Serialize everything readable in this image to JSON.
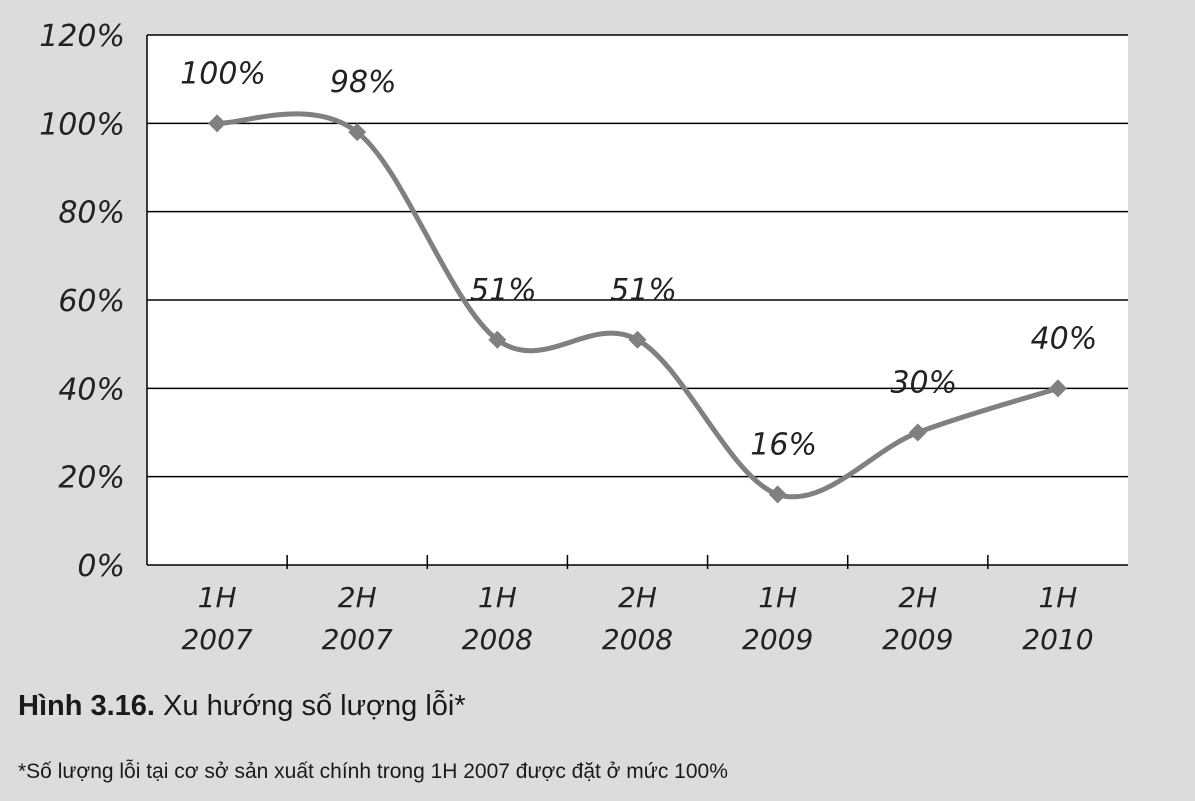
{
  "chart_data": {
    "type": "line",
    "categories": [
      [
        "1H",
        "2007"
      ],
      [
        "2H",
        "2007"
      ],
      [
        "1H",
        "2008"
      ],
      [
        "2H",
        "2008"
      ],
      [
        "1H",
        "2009"
      ],
      [
        "2H",
        "2009"
      ],
      [
        "1H",
        "2010"
      ]
    ],
    "values": [
      100,
      98,
      51,
      51,
      16,
      30,
      40
    ],
    "data_labels": [
      "100%",
      "98%",
      "51%",
      "51%",
      "16%",
      "30%",
      "40%"
    ],
    "y_ticks": [
      "0%",
      "20%",
      "40%",
      "60%",
      "80%",
      "100%",
      "120%"
    ],
    "ylim": [
      0,
      120
    ],
    "grid": true,
    "smooth": true,
    "marker": "diamond",
    "line_color": "#808080",
    "plot_background": "#ffffff",
    "grid_color": "#000000"
  },
  "caption": {
    "figure_label": "Hình 3.16.",
    "title": " Xu hướng số lượng lỗi*"
  },
  "footnote": "*Số lượng lỗi tại cơ sở sản xuất chính trong 1H 2007 được đặt ở mức 100%"
}
